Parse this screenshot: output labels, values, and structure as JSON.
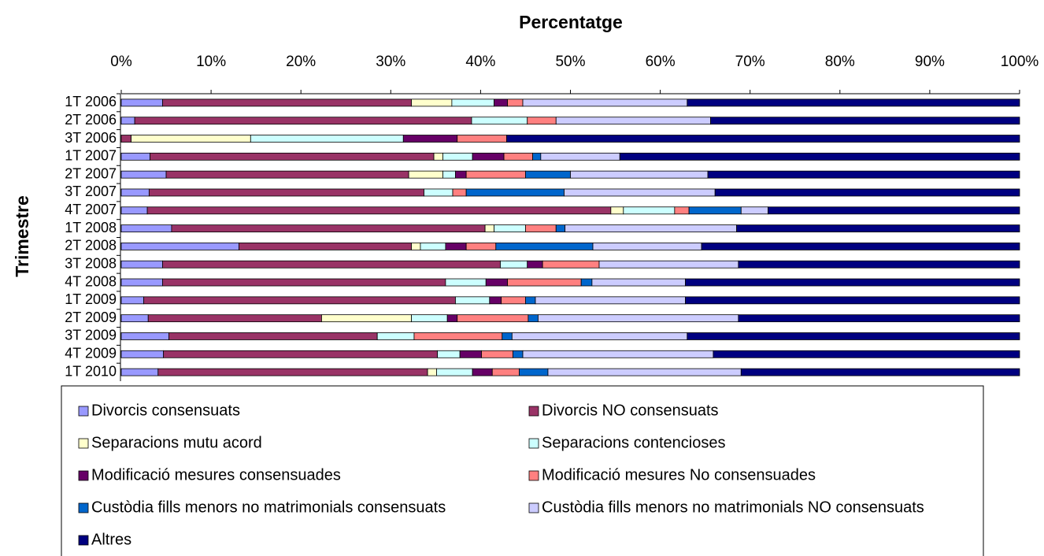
{
  "chart_data": {
    "type": "stacked_barh",
    "title": "Percentatge",
    "y_label": "Trimestre",
    "categories": [
      "1T 2006",
      "2T 2006",
      "3T 2006",
      "1T 2007",
      "2T 2007",
      "3T 2007",
      "4T 2007",
      "1T 2008",
      "2T 2008",
      "3T 2008",
      "4T 2008",
      "1T 2009",
      "2T 2009",
      "3T 2009",
      "4T 2009",
      "1T 2010"
    ],
    "series": [
      {
        "name": "Divorcis consensuats",
        "color": "#9999ff",
        "values": [
          4.6,
          1.5,
          0,
          3.2,
          5.0,
          3.1,
          2.9,
          5.6,
          13.1,
          4.6,
          4.6,
          2.5,
          3.0,
          5.3,
          4.7,
          4.1
        ]
      },
      {
        "name": "Divorcis NO consensuats",
        "color": "#993366",
        "values": [
          27.7,
          37.5,
          1.1,
          31.6,
          27.0,
          30.6,
          51.6,
          34.9,
          19.2,
          37.6,
          31.5,
          34.7,
          19.3,
          23.2,
          30.5,
          30.0
        ]
      },
      {
        "name": "Separacions mutu acord",
        "color": "#ffffcc",
        "values": [
          4.5,
          0,
          13.3,
          1.0,
          3.8,
          0,
          1.4,
          1.0,
          1.0,
          0,
          0,
          0,
          10.0,
          0,
          0,
          1.0
        ]
      },
      {
        "name": "Separacions contencioses",
        "color": "#ccffff",
        "values": [
          4.7,
          6.2,
          17.0,
          3.3,
          1.4,
          3.2,
          5.7,
          3.5,
          2.8,
          3.0,
          4.5,
          3.8,
          4.0,
          4.1,
          2.5,
          4.0
        ]
      },
      {
        "name": "Modificació mesures consensuades",
        "color": "#660066",
        "values": [
          1.5,
          0,
          6.0,
          3.5,
          1.2,
          0,
          0,
          0,
          2.3,
          1.7,
          2.4,
          1.3,
          1.1,
          0,
          2.4,
          2.2
        ]
      },
      {
        "name": "Modificació mesures No consensuades",
        "color": "#ff8080",
        "values": [
          1.7,
          3.2,
          5.5,
          3.2,
          6.6,
          1.5,
          1.6,
          3.4,
          3.3,
          6.3,
          8.2,
          2.7,
          7.9,
          9.8,
          3.5,
          3.0
        ]
      },
      {
        "name": "Custòdia fills menors no matrimonials consensuats",
        "color": "#0066cc",
        "values": [
          0,
          0,
          0,
          0.9,
          5.0,
          10.9,
          5.8,
          1.0,
          10.8,
          0,
          1.2,
          1.1,
          1.1,
          1.1,
          1.1,
          3.2
        ]
      },
      {
        "name": "Custòdia fills menors no matrimonials NO consensuats",
        "color": "#ccccff",
        "values": [
          18.3,
          17.2,
          0,
          8.8,
          15.3,
          16.8,
          3.0,
          19.1,
          12.1,
          15.5,
          10.4,
          16.7,
          22.3,
          19.5,
          21.2,
          21.5
        ]
      },
      {
        "name": "Altres",
        "color": "#000080",
        "values": [
          37.0,
          34.4,
          57.1,
          44.5,
          34.7,
          33.9,
          28.0,
          31.5,
          35.4,
          31.3,
          37.2,
          37.2,
          31.3,
          37.0,
          34.1,
          31.0
        ]
      }
    ],
    "xlim": [
      0,
      100
    ],
    "xticks": [
      {
        "value": 0,
        "label": "0%"
      },
      {
        "value": 10,
        "label": "10%"
      },
      {
        "value": 20,
        "label": "20%"
      },
      {
        "value": 30,
        "label": "30%"
      },
      {
        "value": 40,
        "label": "40%"
      },
      {
        "value": 50,
        "label": "50%"
      },
      {
        "value": 60,
        "label": "60%"
      },
      {
        "value": 70,
        "label": "70%"
      },
      {
        "value": 80,
        "label": "80%"
      },
      {
        "value": 90,
        "label": "90%"
      },
      {
        "value": 100,
        "label": "100%"
      }
    ]
  }
}
